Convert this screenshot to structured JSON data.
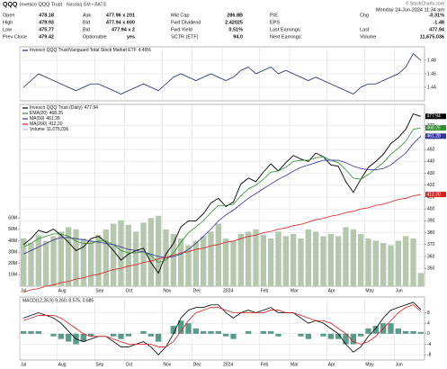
{
  "header": {
    "symbol": "QQQ",
    "name": "Invesco QQQ Trust",
    "exchange": "Nasdaq GM • BATS",
    "copyright": "© StockCharts.com",
    "date": "Monday 24-Jun-2024 11:34 am",
    "quote": [
      [
        {
          "label": "Open",
          "value": "478.18"
        },
        {
          "label": "Ask",
          "value": "477.96 x 201"
        },
        {
          "label": "Mkt Cap",
          "value": "286.8B"
        },
        {
          "label": "P/E"
        },
        {
          "label": "Chg",
          "value": "-0.31%"
        }
      ],
      [
        {
          "label": "High",
          "value": "479.93"
        },
        {
          "label": "Bid",
          "value": "477.94 x 600"
        },
        {
          "label": "Fwd Dividend",
          "value": "2.42025"
        },
        {
          "label": "EPS"
        },
        {
          "value": "-1.48"
        }
      ],
      [
        {
          "label": "Low",
          "value": "475.77"
        },
        {
          "label": "Bid",
          "value": "477.94 x 2"
        },
        {
          "label": "Fwd Yield",
          "value": "0.51%"
        },
        {
          "label": "Last Earnings:"
        },
        {
          "label": "Last",
          "value": "477.94"
        }
      ],
      [
        {
          "label": "Prev Close",
          "value": "479.42"
        },
        {
          "label": "Optionable",
          "value": "yes"
        },
        {
          "label": "SCTR (ETF)",
          "value": "94.0"
        },
        {
          "label": "Next Earnings:"
        },
        {
          "label": "Volume",
          "value": "11,675,036"
        }
      ]
    ]
  },
  "chart_data": [
    {
      "type": "line",
      "categories": [
        "Jul",
        null,
        null,
        null,
        null,
        "Aug",
        null,
        null,
        null,
        null,
        "Sep",
        null,
        null,
        null,
        "Oct",
        null,
        null,
        null,
        null,
        "Nov",
        null,
        null,
        null,
        "Dec",
        null,
        null,
        null,
        "2024",
        null,
        null,
        null,
        null,
        "Feb",
        null,
        null,
        null,
        "Mar",
        null,
        null,
        null,
        null,
        "Apr",
        null,
        null,
        null,
        null,
        "May",
        null,
        null,
        null,
        "Jun",
        null,
        null,
        null
      ],
      "ylim": [
        1.42,
        1.5
      ],
      "yticks": [
        1.44,
        1.46,
        1.48
      ],
      "grid": true,
      "series": [
        {
          "name": "Invesco QQQ Trust/Vanguard Total Stock Market ETF",
          "legend_value": "4.49%",
          "color": "#1a2a6a",
          "style": "line",
          "values": [
            1.44,
            1.45,
            1.46,
            1.455,
            1.45,
            1.445,
            1.44,
            1.435,
            1.44,
            1.445,
            1.445,
            1.44,
            1.435,
            1.43,
            1.435,
            1.44,
            1.445,
            1.44,
            1.435,
            1.445,
            1.455,
            1.46,
            1.455,
            1.45,
            1.455,
            1.46,
            1.455,
            1.45,
            1.455,
            1.465,
            1.47,
            1.46,
            1.465,
            1.47,
            1.46,
            1.465,
            1.46,
            1.455,
            1.45,
            1.455,
            1.45,
            1.445,
            1.44,
            1.435,
            1.43,
            1.44,
            1.445,
            1.445,
            1.45,
            1.455,
            1.46,
            1.47,
            1.49,
            1.48
          ]
        }
      ]
    },
    {
      "type": "line",
      "categories": [
        "Jul",
        null,
        null,
        null,
        null,
        "Aug",
        null,
        null,
        null,
        null,
        "Sep",
        null,
        null,
        null,
        "Oct",
        null,
        null,
        null,
        null,
        "Nov",
        null,
        null,
        null,
        "Dec",
        null,
        null,
        null,
        "2024",
        null,
        null,
        null,
        null,
        "Feb",
        null,
        null,
        null,
        "Mar",
        null,
        null,
        null,
        null,
        "Apr",
        null,
        null,
        null,
        null,
        "May",
        null,
        null,
        null,
        "Jun",
        null,
        null,
        null
      ],
      "ylim": [
        335,
        488
      ],
      "yticks": [
        350,
        360,
        370,
        380,
        390,
        400,
        410,
        420,
        430,
        440,
        450,
        460,
        470
      ],
      "grid": true,
      "y2lim": [
        0,
        160000000
      ],
      "y2ticks": [
        {
          "value": 10000000,
          "label": "10M"
        },
        {
          "value": 20000000,
          "label": "20M"
        },
        {
          "value": 30000000,
          "label": "30M"
        },
        {
          "value": 40000000,
          "label": "40M"
        },
        {
          "value": 50000000,
          "label": "50M"
        },
        {
          "value": 60000000,
          "label": "60M"
        }
      ],
      "series": [
        {
          "name": "Invesco QQQ Trust (Daily)",
          "legend_value": "477.94",
          "color": "#000000",
          "style": "line",
          "box": true,
          "values": [
            370,
            375,
            382,
            380,
            383,
            378,
            372,
            365,
            368,
            375,
            377,
            372,
            365,
            357,
            362,
            365,
            367,
            355,
            346,
            362,
            371,
            385,
            390,
            390,
            396,
            405,
            409,
            402,
            406,
            421,
            426,
            423,
            431,
            438,
            432,
            439,
            445,
            442,
            440,
            447,
            444,
            437,
            436,
            423,
            414,
            425,
            435,
            440,
            446,
            455,
            460,
            467,
            480,
            477.94
          ]
        },
        {
          "name": "EMA(20)",
          "legend_value": "468.25",
          "color": "#2e8b2e",
          "style": "line",
          "box": true,
          "values": [
            368,
            371,
            375,
            377,
            379,
            379,
            377,
            373,
            371,
            371,
            373,
            373,
            370,
            365,
            363,
            363,
            364,
            361,
            355,
            357,
            363,
            372,
            380,
            385,
            390,
            397,
            403,
            403,
            404,
            411,
            417,
            420,
            425,
            431,
            432,
            435,
            440,
            441,
            441,
            443,
            444,
            441,
            439,
            433,
            426,
            425,
            429,
            434,
            439,
            446,
            451,
            457,
            467,
            468.25
          ]
        },
        {
          "name": "MA(50)",
          "legend_value": "461.28",
          "color": "#34349a",
          "style": "line",
          "box": true,
          "values": [
            362,
            365,
            368,
            371,
            374,
            376,
            376,
            375,
            374,
            373,
            372,
            371,
            370,
            368,
            366,
            365,
            364,
            362,
            360,
            359,
            360,
            362,
            366,
            371,
            377,
            383,
            390,
            395,
            399,
            404,
            409,
            413,
            417,
            421,
            425,
            428,
            432,
            435,
            437,
            439,
            441,
            441,
            441,
            439,
            436,
            434,
            433,
            433,
            434,
            437,
            442,
            447,
            455,
            461.28
          ]
        },
        {
          "name": "MA(200)",
          "legend_value": "412.20",
          "color": "#d42020",
          "style": "line",
          "box": true,
          "values": [
            330,
            332,
            333,
            335,
            336,
            338,
            339,
            341,
            342,
            344,
            345,
            347,
            349,
            350,
            352,
            353,
            355,
            356,
            358,
            359,
            361,
            363,
            364,
            366,
            367,
            369,
            370,
            372,
            373,
            375,
            377,
            378,
            380,
            381,
            383,
            384,
            386,
            387,
            389,
            391,
            392,
            394,
            395,
            397,
            398,
            400,
            401,
            403,
            404,
            406,
            408,
            409,
            411,
            412.2
          ]
        },
        {
          "name": "Volume",
          "legend_value": "11,675,036",
          "color": "#b5c7ad",
          "style": "bar",
          "axis": "y2",
          "values": [
            42000000,
            38000000,
            45000000,
            40000000,
            44000000,
            48000000,
            52000000,
            50000000,
            42000000,
            40000000,
            45000000,
            50000000,
            55000000,
            58000000,
            54000000,
            48000000,
            56000000,
            60000000,
            62000000,
            50000000,
            46000000,
            42000000,
            36000000,
            40000000,
            44000000,
            48000000,
            55000000,
            42000000,
            40000000,
            46000000,
            48000000,
            50000000,
            45000000,
            42000000,
            48000000,
            44000000,
            46000000,
            42000000,
            50000000,
            48000000,
            44000000,
            46000000,
            44000000,
            52000000,
            50000000,
            46000000,
            42000000,
            40000000,
            38000000,
            36000000,
            40000000,
            44000000,
            42000000,
            11675036
          ]
        }
      ]
    },
    {
      "type": "line",
      "title": "MACD(12,26,9) 9.260, 8.575, 0.685",
      "categories": [
        "Jul",
        null,
        null,
        null,
        null,
        "Aug",
        null,
        null,
        null,
        null,
        "Sep",
        null,
        null,
        null,
        "Oct",
        null,
        null,
        null,
        null,
        "Nov",
        null,
        null,
        null,
        "Dec",
        null,
        null,
        null,
        "2024",
        null,
        null,
        null,
        null,
        "Feb",
        null,
        null,
        null,
        "Mar",
        null,
        null,
        null,
        null,
        "Apr",
        null,
        null,
        null,
        null,
        "May",
        null,
        null,
        null,
        "Jun",
        null,
        null,
        null
      ],
      "ylim": [
        -10,
        14
      ],
      "yticks": [
        -8,
        -4,
        0,
        4,
        8
      ],
      "grid": true,
      "series": [
        {
          "color": "#5a9a8a",
          "style": "bar",
          "values": [
            1,
            1,
            1,
            0,
            -1,
            -2,
            -3,
            -4,
            -3,
            -1,
            0,
            0,
            -1,
            -2,
            -1,
            0,
            1,
            -1,
            -3,
            0,
            3,
            5,
            4,
            2,
            1,
            1,
            1,
            -1,
            -2,
            0,
            1,
            0,
            1,
            1,
            -1,
            0,
            0,
            -1,
            -2,
            0,
            -1,
            -2,
            -2,
            -4,
            -4,
            -1,
            2,
            3,
            4,
            4,
            2,
            1,
            1,
            0.685
          ]
        },
        {
          "color": "#000000",
          "style": "line",
          "values": [
            6,
            7,
            8,
            7,
            6,
            4,
            1,
            -2,
            -3,
            -2,
            -1,
            -1,
            -3,
            -5,
            -5,
            -4,
            -3,
            -5,
            -8,
            -5,
            0,
            6,
            9,
            10,
            10,
            11,
            11,
            8,
            6,
            8,
            9,
            8,
            9,
            10,
            8,
            8,
            8,
            6,
            4,
            5,
            4,
            2,
            0,
            -4,
            -7,
            -5,
            -1,
            2,
            6,
            9,
            10,
            11,
            12,
            9.26
          ]
        },
        {
          "color": "#d42020",
          "style": "line",
          "values": [
            5,
            6,
            7,
            7,
            7,
            6,
            4,
            2,
            0,
            -1,
            -1,
            -1,
            -2,
            -3,
            -4,
            -4,
            -4,
            -4,
            -5,
            -5,
            -3,
            1,
            5,
            8,
            9,
            10,
            10,
            9,
            8,
            8,
            8,
            8,
            8,
            9,
            9,
            8,
            8,
            7,
            6,
            5,
            5,
            4,
            2,
            0,
            -3,
            -4,
            -3,
            -1,
            2,
            5,
            8,
            10,
            11,
            8.575
          ]
        }
      ]
    }
  ]
}
